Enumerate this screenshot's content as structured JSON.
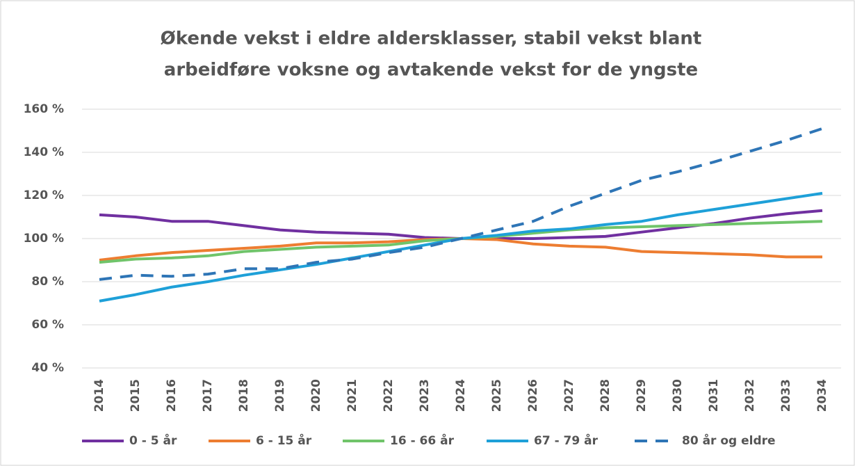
{
  "chart_data": {
    "type": "line",
    "title": [
      "Økende vekst i eldre aldersklasser, stabil vekst blant",
      "arbeidføre voksne og avtakende vekst for de yngste"
    ],
    "categories": [
      "2014",
      "2015",
      "2016",
      "2017",
      "2018",
      "2019",
      "2020",
      "2021",
      "2022",
      "2023",
      "2024",
      "2025",
      "2026",
      "2027",
      "2028",
      "2029",
      "2030",
      "2031",
      "2032",
      "2033",
      "2034"
    ],
    "series": [
      {
        "name": "0 - 5 år",
        "color": "#7030a0",
        "line_style": "solid",
        "values": [
          111,
          110,
          108,
          108,
          106,
          104,
          103,
          102.5,
          102,
          100.5,
          100,
          100,
          100,
          100.5,
          101,
          103,
          105,
          107,
          109.5,
          111.5,
          113
        ]
      },
      {
        "name": "6 - 15 år",
        "color": "#ed7d31",
        "line_style": "solid",
        "values": [
          90,
          92,
          93.5,
          94.5,
          95.5,
          96.5,
          98,
          98,
          98.5,
          99.5,
          100,
          99.5,
          97.5,
          96.5,
          96,
          94,
          93.5,
          93,
          92.5,
          91.5,
          91.5
        ]
      },
      {
        "name": "16 - 66 år",
        "color": "#70c46a",
        "line_style": "solid",
        "values": [
          89,
          90.5,
          91,
          92,
          94,
          95,
          96,
          96.5,
          97,
          99,
          100,
          101,
          102.5,
          104,
          105,
          105.5,
          106,
          106.5,
          107,
          107.5,
          108
        ]
      },
      {
        "name": "67 - 79 år",
        "color": "#1ea0d8",
        "line_style": "solid",
        "values": [
          71,
          74,
          77.5,
          80,
          83,
          85.5,
          88,
          91,
          94,
          97,
          100,
          101.5,
          103.5,
          104.5,
          106.5,
          108,
          111,
          113.5,
          116,
          118.5,
          121
        ]
      },
      {
        "name": "80 år og eldre",
        "color": "#2e75b6",
        "line_style": "dashed",
        "values": [
          81,
          83,
          82.5,
          83.5,
          86,
          86,
          89,
          90.5,
          93.5,
          96,
          100,
          104,
          108,
          115,
          121,
          127,
          131,
          135.5,
          140.5,
          145.5,
          151
        ]
      }
    ],
    "ylim": [
      40,
      160
    ],
    "yticks": [
      {
        "value": 40,
        "label": "40 %"
      },
      {
        "value": 60,
        "label": "60 %"
      },
      {
        "value": 80,
        "label": "80 %"
      },
      {
        "value": 100,
        "label": "100 %"
      },
      {
        "value": 120,
        "label": "120 %"
      },
      {
        "value": 140,
        "label": "140 %"
      },
      {
        "value": 160,
        "label": "160 %"
      }
    ],
    "grid": true,
    "legend": "bottom"
  }
}
